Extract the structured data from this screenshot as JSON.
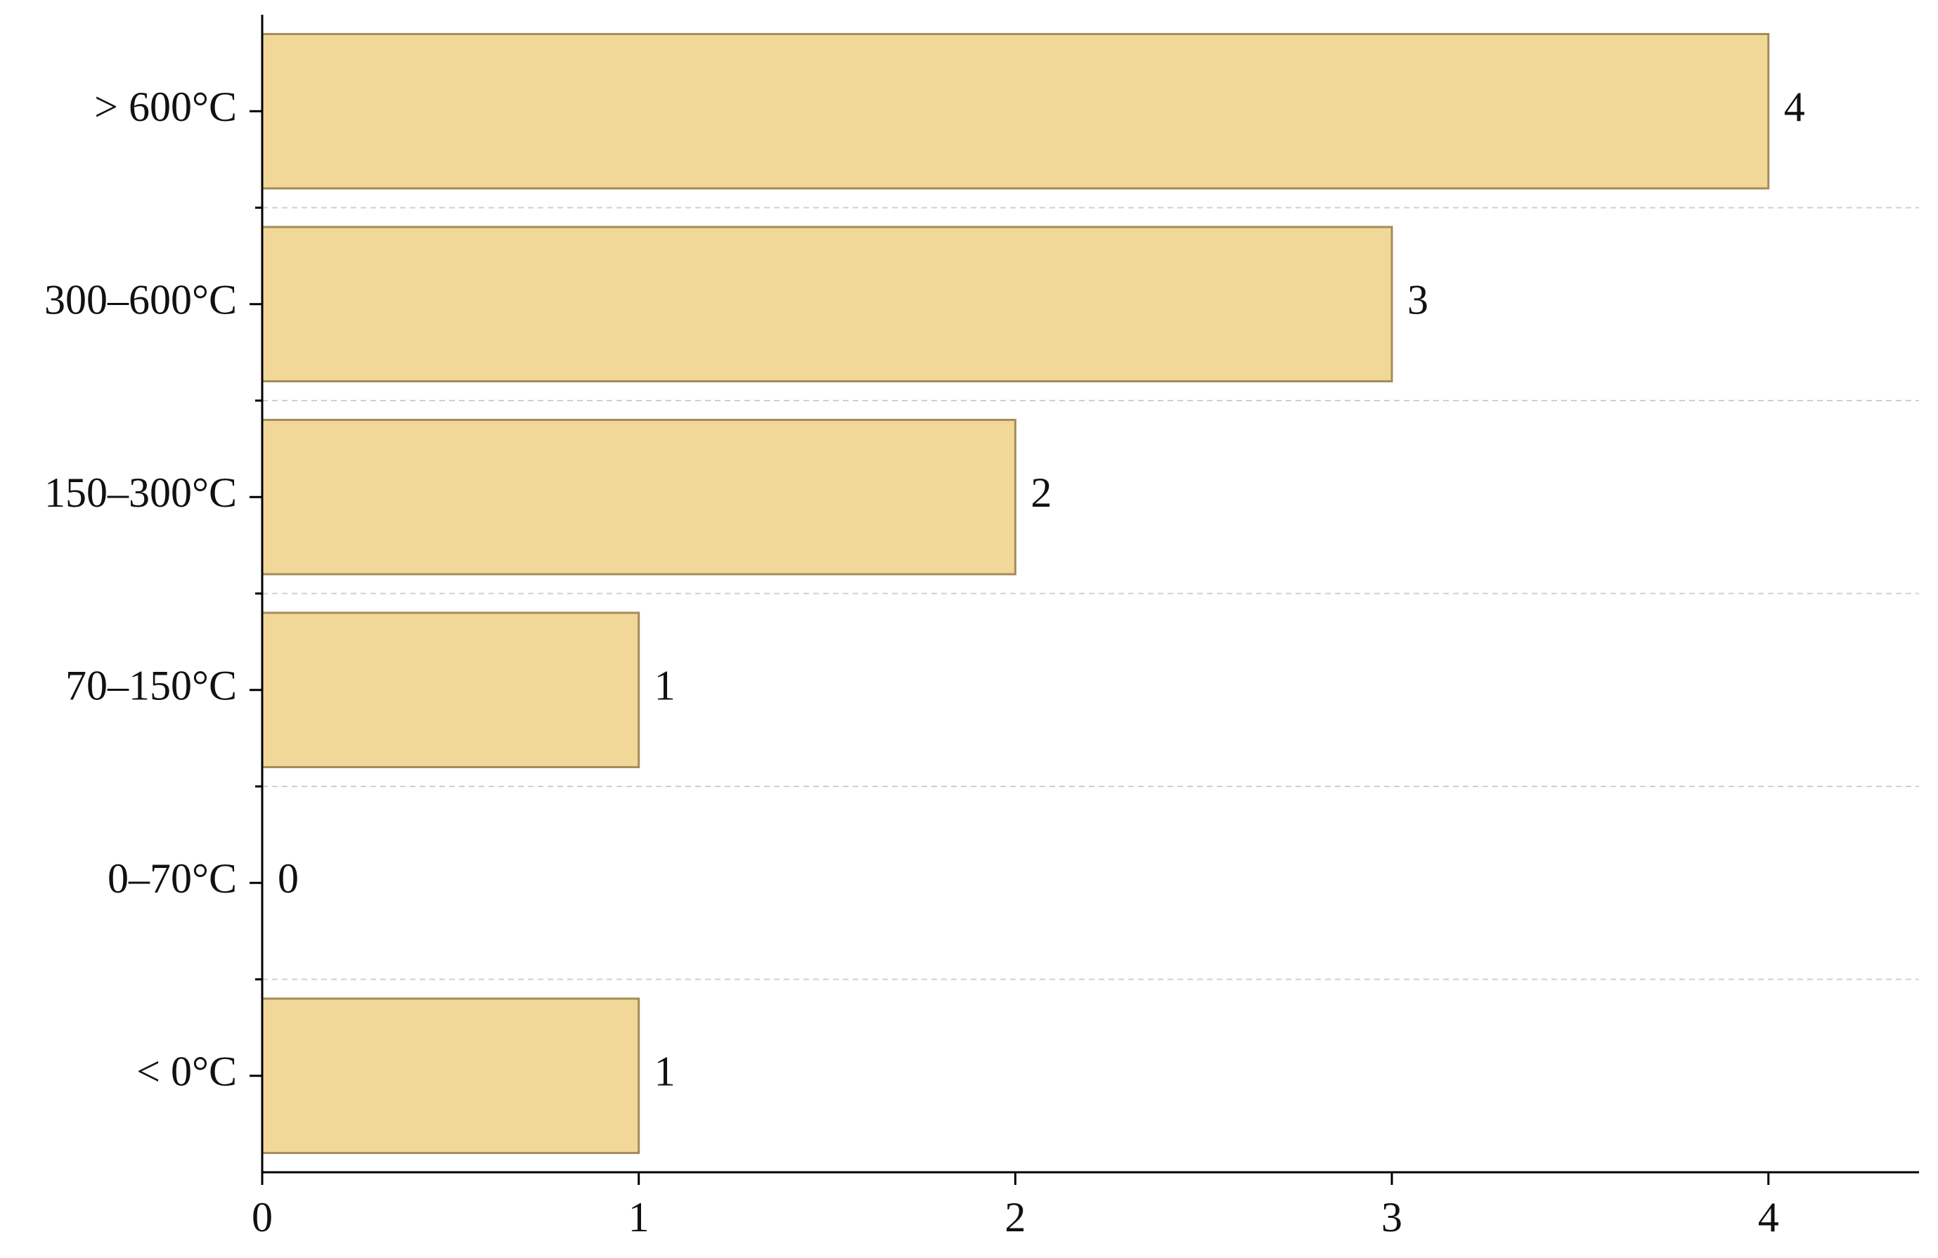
{
  "chart_data": {
    "type": "barh",
    "categories": [
      "< 0°C",
      "0–70°C",
      "70–150°C",
      "150–300°C",
      "300–600°C",
      "> 600°C"
    ],
    "values": [
      1,
      0,
      1,
      2,
      3,
      4
    ],
    "color": "#f2d898",
    "edge_color": "#a38c5a",
    "xlim": [
      0,
      4.4
    ],
    "xticks": [
      0,
      1,
      2,
      3,
      4
    ]
  }
}
